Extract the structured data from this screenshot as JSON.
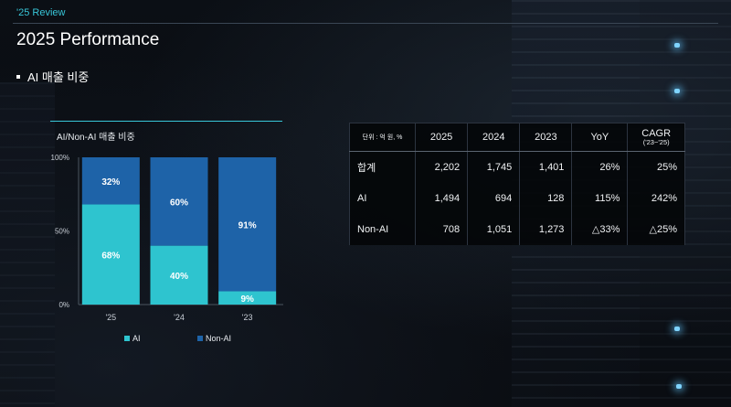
{
  "header": {
    "tag": "'25 Review",
    "title": "2025 Performance",
    "section": "AI 매출 비중"
  },
  "chart_data": {
    "type": "bar",
    "stacked": true,
    "title": "AI/Non-AI 매출 비중",
    "categories": [
      "'25",
      "'24",
      "'23"
    ],
    "series": [
      {
        "name": "AI",
        "values": [
          68,
          40,
          9
        ],
        "color": "#2ec4cf"
      },
      {
        "name": "Non-AI",
        "values": [
          32,
          60,
          91
        ],
        "color": "#1e63a8"
      }
    ],
    "ylim": [
      0,
      100
    ],
    "yticks": [
      "0%",
      "50%",
      "100%"
    ],
    "ytick_values": [
      0,
      50,
      100
    ],
    "value_suffix": "%",
    "legend": "bottom"
  },
  "table": {
    "unit": "단위 : 억 원, %",
    "columns": [
      "2025",
      "2024",
      "2023",
      "YoY"
    ],
    "cagr": {
      "label": "CAGR",
      "sub": "('23~'25)"
    },
    "rows": [
      {
        "label": "합계",
        "cells": [
          "2,202",
          "1,745",
          "1,401",
          "26%",
          "25%"
        ]
      },
      {
        "label": "AI",
        "cells": [
          "1,494",
          "694",
          "128",
          "115%",
          "242%"
        ]
      },
      {
        "label": "Non-AI",
        "cells": [
          "708",
          "1,051",
          "1,273",
          "△33%",
          "△25%"
        ]
      }
    ]
  }
}
